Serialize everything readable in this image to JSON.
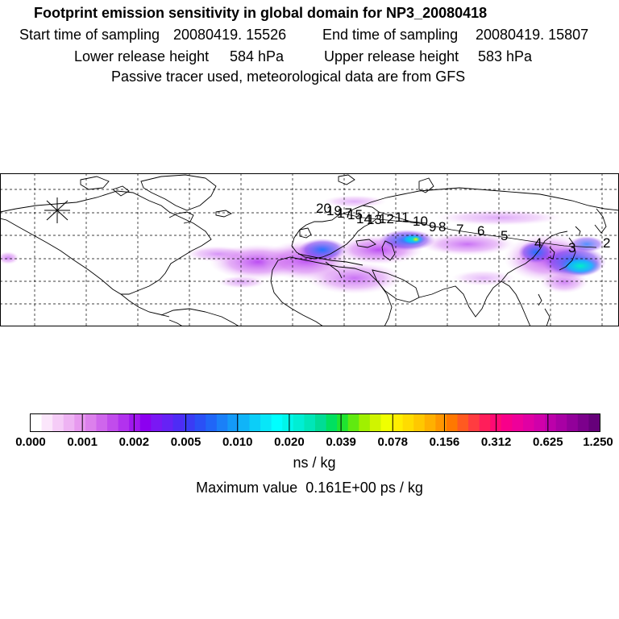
{
  "header": {
    "title": "Footprint emission sensitivity in global domain for NP3_20080418",
    "start_label": "Start time of sampling",
    "start_value": "20080419. 15526",
    "end_label": "End time of sampling",
    "end_value": "20080419. 15807",
    "lower_label": "Lower release height",
    "lower_value": "584 hPa",
    "upper_label": "Upper release height",
    "upper_value": "583 hPa",
    "note": "Passive tracer used, meteorological data are from GFS"
  },
  "map": {
    "trajectory_labels": [
      "20",
      "19",
      "17",
      "15",
      "14",
      "13",
      "12",
      "11",
      "10",
      "9",
      "8",
      "7",
      "6",
      "5",
      "4",
      "3",
      "2"
    ]
  },
  "colorbar": {
    "tick_labels": [
      "0.000",
      "0.001",
      "0.002",
      "0.005",
      "0.010",
      "0.020",
      "0.039",
      "0.078",
      "0.156",
      "0.312",
      "0.625",
      "1.250"
    ],
    "colors": [
      "#ffffff",
      "#fbe6fb",
      "#f5ccf7",
      "#eeb3f3",
      "#e799ef",
      "#dc80ec",
      "#cf66ec",
      "#c14cec",
      "#b232ee",
      "#a018ee",
      "#8c00f0",
      "#7a18f4",
      "#6622f5",
      "#4e2cf5",
      "#3a3cf5",
      "#2a50f6",
      "#2066f7",
      "#1a80f8",
      "#149af8",
      "#10b4f8",
      "#0ccef8",
      "#08e6f8",
      "#00ffff",
      "#00f6ea",
      "#00eed4",
      "#00e6b8",
      "#00dc96",
      "#00e060",
      "#20e430",
      "#60ea10",
      "#a0f000",
      "#d0f400",
      "#f0ff00",
      "#ffee00",
      "#ffdc00",
      "#ffc800",
      "#ffb000",
      "#ff9600",
      "#ff7800",
      "#ff5a20",
      "#ff3c40",
      "#ff1e5a",
      "#ff0a74",
      "#f8008a",
      "#ee009a",
      "#e000a4",
      "#d000aa",
      "#bc00aa",
      "#a800a4",
      "#92009a",
      "#7c008c",
      "#66007a"
    ]
  },
  "unit_label": "ns / kg",
  "max_label": "Maximum value",
  "max_value": "0.161E+00 ps / kg",
  "colors": {
    "accent_magenta": "#cc33ee",
    "accent_blue": "#1a60ff",
    "accent_cyan": "#00f0e0",
    "accent_yellow": "#ffee00"
  }
}
